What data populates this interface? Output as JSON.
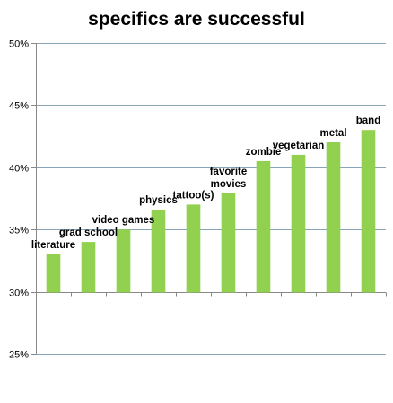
{
  "chart_data": {
    "type": "bar",
    "title": "specifics are successful",
    "xlabel": "",
    "ylabel": "",
    "categories": [
      "literature",
      "grad school",
      "video games",
      "physics",
      "tattoo(s)",
      "favorite movies",
      "zombie",
      "vegetarian",
      "metal",
      "band"
    ],
    "label_lines": [
      [
        "literature"
      ],
      [
        "grad school"
      ],
      [
        "video games"
      ],
      [
        "physics"
      ],
      [
        "tattoo(s)"
      ],
      [
        "favorite",
        "movies"
      ],
      [
        "zombie"
      ],
      [
        "vegetarian"
      ],
      [
        "metal"
      ],
      [
        "band"
      ]
    ],
    "values": [
      33.0,
      34.0,
      35.0,
      36.6,
      37.0,
      37.9,
      40.5,
      41.0,
      42.0,
      43.0
    ],
    "ylim": [
      25,
      50
    ],
    "yticks": [
      25,
      30,
      35,
      40,
      45,
      50
    ],
    "ytick_labels": [
      "25%",
      "30%",
      "35%",
      "40%",
      "45%",
      "50%"
    ],
    "x_axis_at": 30,
    "grid": true,
    "legend": "none",
    "bar_color": "#92d050",
    "grid_color": "#88a4b8",
    "axis_color": "#888888"
  }
}
